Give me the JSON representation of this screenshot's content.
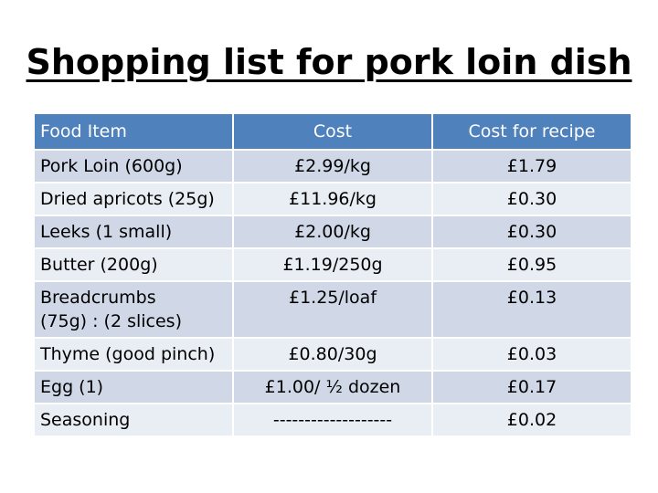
{
  "title": "Shopping list for pork loin dish",
  "table": {
    "headers": [
      "Food Item",
      "Cost",
      "Cost  for recipe"
    ],
    "rows": [
      {
        "item": "Pork Loin (600g)",
        "cost": "£2.99/kg",
        "recipe_cost": "£1.79"
      },
      {
        "item": "Dried apricots (25g)",
        "cost": "£11.96/kg",
        "recipe_cost": "£0.30"
      },
      {
        "item": "Leeks (1 small)",
        "cost": "£2.00/kg",
        "recipe_cost": "£0.30"
      },
      {
        "item": "Butter (200g)",
        "cost": "£1.19/250g",
        "recipe_cost": "£0.95"
      },
      {
        "item": "Breadcrumbs\n (75g) :  (2 slices)",
        "cost": "£1.25/loaf",
        "recipe_cost": "£0.13"
      },
      {
        "item": "Thyme (good pinch)",
        "cost": "£0.80/30g",
        "recipe_cost": "£0.03"
      },
      {
        "item": "Egg (1)",
        "cost": "£1.00/ ½ dozen",
        "recipe_cost": "£0.17"
      },
      {
        "item": "Seasoning",
        "cost": "-------------------",
        "recipe_cost": "£0.02"
      }
    ]
  },
  "colors": {
    "header_bg": "#4f81bd",
    "row_odd_bg": "#d0d8e8",
    "row_even_bg": "#e9edf4"
  }
}
